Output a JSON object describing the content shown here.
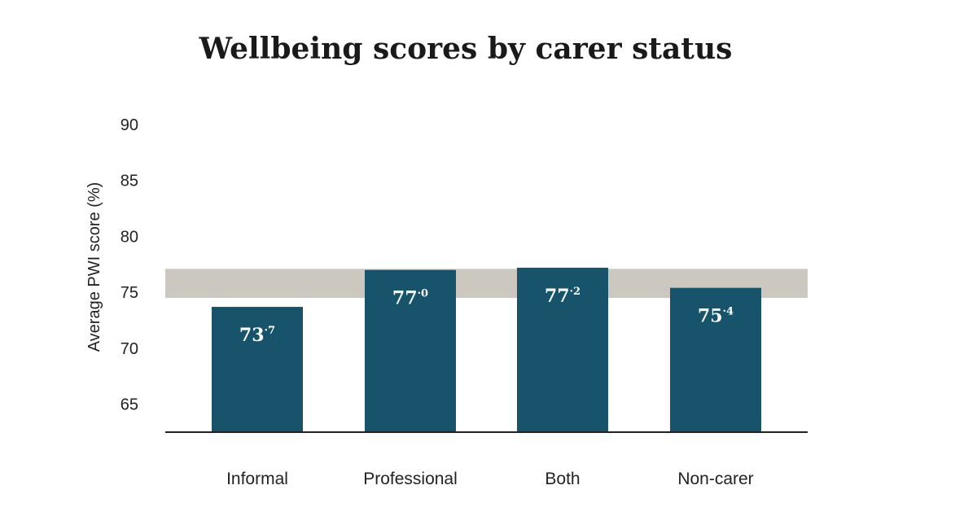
{
  "chart_data": {
    "type": "bar",
    "title": "Wellbeing scores by carer status",
    "ylabel": "Average PWI score (%)",
    "xlabel": "",
    "categories": [
      "Informal",
      "Professional",
      "Both",
      "Non-carer"
    ],
    "values": [
      73.7,
      77.0,
      77.2,
      75.4
    ],
    "data_labels": [
      {
        "main": "73",
        "sup": "·7"
      },
      {
        "main": "77",
        "sup": "·0"
      },
      {
        "main": "77",
        "sup": "·2"
      },
      {
        "main": "75",
        "sup": "·4"
      }
    ],
    "yticks": [
      65,
      70,
      75,
      80,
      85,
      90
    ],
    "ylim": [
      62.5,
      90
    ],
    "normal_range": [
      74.5,
      77.1
    ],
    "grid": false,
    "legend": "none"
  },
  "colors": {
    "bar": "#17546b",
    "normal_range_band": "#ccc8bf",
    "axis": "#222222"
  }
}
